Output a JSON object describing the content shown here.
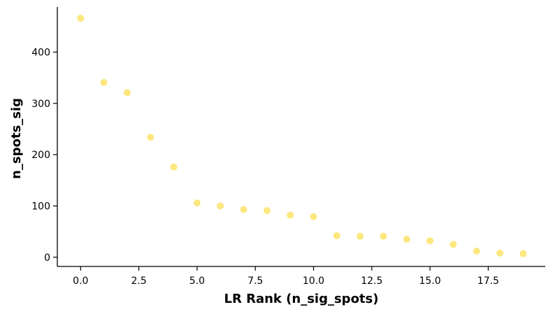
{
  "chart_data": {
    "type": "scatter",
    "xlabel": "LR Rank (n_sig_spots)",
    "ylabel": "n_spots_sig",
    "xlim": [
      -1,
      19.95
    ],
    "ylim": [
      -18,
      488
    ],
    "x_ticks": [
      0.0,
      2.5,
      5.0,
      7.5,
      10.0,
      12.5,
      15.0,
      17.5
    ],
    "x_tick_labels": [
      "0.0",
      "2.5",
      "5.0",
      "7.5",
      "10.0",
      "12.5",
      "15.0",
      "17.5"
    ],
    "y_ticks": [
      0,
      100,
      200,
      300,
      400
    ],
    "y_tick_labels": [
      "0",
      "100",
      "200",
      "300",
      "400"
    ],
    "grid": false,
    "marker_color": "#fde77f",
    "x": [
      0,
      1,
      2,
      3,
      4,
      5,
      6,
      7,
      8,
      9,
      10,
      11,
      12,
      13,
      14,
      15,
      16,
      17,
      18,
      19
    ],
    "y": [
      466,
      341,
      321,
      234,
      176,
      106,
      100,
      93,
      91,
      82,
      79,
      42,
      41,
      41,
      35,
      32,
      25,
      12,
      8,
      7
    ]
  }
}
